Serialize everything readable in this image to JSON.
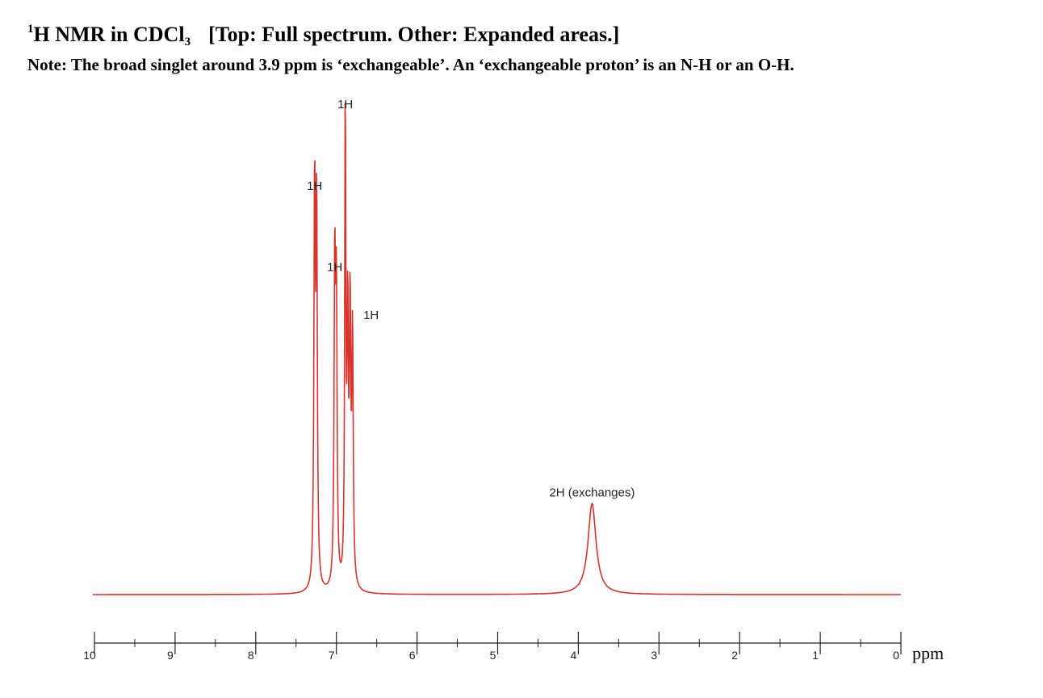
{
  "heading": {
    "superscript": "1",
    "nucleus": "H  NMR in CDCl",
    "subscript": "3",
    "bracket": "[Top: Full spectrum.  Other: Expanded areas.]"
  },
  "note": "Note:   The broad singlet around 3.9 ppm is ‘exchangeable’.  An ‘exchangeable proton’ is an N-H or an O-H.",
  "colors": {
    "spectrum": "#d8332b",
    "axis": "#222222",
    "text": "#000000"
  },
  "chart_data": {
    "type": "line",
    "x_axis": {
      "range": [
        10,
        0
      ],
      "reversed": true,
      "ticks": [
        10,
        9,
        8,
        7,
        6,
        5,
        4,
        3,
        2,
        1,
        0
      ],
      "unit": "ppm"
    },
    "grid": false,
    "peaks": [
      {
        "ppm": 7.27,
        "height": 0.83,
        "width": 0.01,
        "label": "1H"
      },
      {
        "ppm": 7.245,
        "height": 0.78,
        "width": 0.01
      },
      {
        "ppm": 7.02,
        "height": 0.66,
        "width": 0.01,
        "label": "1H"
      },
      {
        "ppm": 7.0,
        "height": 0.58,
        "width": 0.01
      },
      {
        "ppm": 6.89,
        "height": 1.0,
        "width": 0.008,
        "label": "1H"
      },
      {
        "ppm": 6.86,
        "height": 0.55,
        "width": 0.01
      },
      {
        "ppm": 6.83,
        "height": 0.56,
        "width": 0.01,
        "label": "1H"
      },
      {
        "ppm": 6.8,
        "height": 0.52,
        "width": 0.01
      },
      {
        "ppm": 3.83,
        "height": 0.19,
        "width": 0.06,
        "label": "2H (exchanges)"
      }
    ]
  }
}
